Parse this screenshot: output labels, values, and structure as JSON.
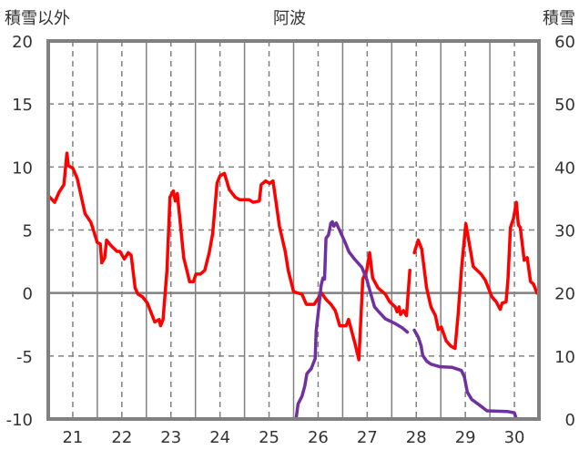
{
  "chart_data": {
    "type": "line",
    "title": "阿波",
    "ylabel_left": "積雪以外",
    "ylabel_right": "積雪",
    "xlim": [
      21,
      31
    ],
    "ylim_left": [
      -10,
      20
    ],
    "ylim_right": [
      0,
      60
    ],
    "yticks_left": [
      "20",
      "15",
      "10",
      "5",
      "0",
      "-5",
      "-10"
    ],
    "yticks_right": [
      "60",
      "50",
      "40",
      "30",
      "20",
      "10",
      "0"
    ],
    "xticks": [
      "21",
      "22",
      "23",
      "24",
      "25",
      "26",
      "27",
      "28",
      "29",
      "30"
    ],
    "grid": true,
    "colors": {
      "temp": "#ff0000",
      "snow": "#7030a0",
      "axis": "#808080"
    },
    "series": [
      {
        "name": "積雪以外",
        "axis": "left",
        "color": "#ff0000",
        "points": [
          [
            21.01,
            7.7
          ],
          [
            21.13,
            7.2
          ],
          [
            21.22,
            8.0
          ],
          [
            21.32,
            8.6
          ],
          [
            21.38,
            11.1
          ],
          [
            21.41,
            10.1
          ],
          [
            21.5,
            9.9
          ],
          [
            21.59,
            9.1
          ],
          [
            21.75,
            6.3
          ],
          [
            21.87,
            5.6
          ],
          [
            22.0,
            4.0
          ],
          [
            22.06,
            3.9
          ],
          [
            22.09,
            2.4
          ],
          [
            22.15,
            2.8
          ],
          [
            22.19,
            4.2
          ],
          [
            22.27,
            3.8
          ],
          [
            22.4,
            3.3
          ],
          [
            22.46,
            3.3
          ],
          [
            22.55,
            2.7
          ],
          [
            22.63,
            3.2
          ],
          [
            22.69,
            3.0
          ],
          [
            22.77,
            0.4
          ],
          [
            22.83,
            -0.1
          ],
          [
            22.92,
            -0.3
          ],
          [
            23.02,
            -0.8
          ],
          [
            23.17,
            -2.3
          ],
          [
            23.26,
            -2.1
          ],
          [
            23.29,
            -2.6
          ],
          [
            23.34,
            -2.1
          ],
          [
            23.42,
            1.8
          ],
          [
            23.48,
            7.6
          ],
          [
            23.55,
            8.1
          ],
          [
            23.59,
            7.3
          ],
          [
            23.63,
            7.9
          ],
          [
            23.76,
            2.8
          ],
          [
            23.85,
            1.4
          ],
          [
            23.88,
            0.9
          ],
          [
            23.96,
            0.9
          ],
          [
            24.01,
            1.5
          ],
          [
            24.1,
            1.5
          ],
          [
            24.19,
            1.8
          ],
          [
            24.28,
            3.2
          ],
          [
            24.35,
            4.7
          ],
          [
            24.44,
            8.7
          ],
          [
            24.5,
            9.3
          ],
          [
            24.59,
            9.5
          ],
          [
            24.69,
            8.2
          ],
          [
            24.81,
            7.6
          ],
          [
            24.9,
            7.4
          ],
          [
            25.09,
            7.4
          ],
          [
            25.18,
            7.2
          ],
          [
            25.3,
            7.3
          ],
          [
            25.34,
            8.6
          ],
          [
            25.43,
            8.9
          ],
          [
            25.51,
            8.7
          ],
          [
            25.58,
            8.9
          ],
          [
            25.71,
            5.3
          ],
          [
            25.83,
            3.3
          ],
          [
            25.89,
            1.8
          ],
          [
            26.0,
            0.1
          ],
          [
            26.17,
            -0.1
          ],
          [
            26.26,
            -0.9
          ],
          [
            26.42,
            -0.9
          ],
          [
            26.57,
            0.0
          ],
          [
            26.66,
            -0.5
          ],
          [
            26.76,
            -0.9
          ],
          [
            26.85,
            -1.4
          ],
          [
            26.94,
            -2.6
          ],
          [
            27.07,
            -2.6
          ],
          [
            27.12,
            -2.1
          ],
          [
            27.25,
            -4.0
          ],
          [
            27.33,
            -5.3
          ],
          [
            27.41,
            1.1
          ],
          [
            27.49,
            1.8
          ],
          [
            27.55,
            3.2
          ],
          [
            27.61,
            1.2
          ],
          [
            27.72,
            0.4
          ],
          [
            27.87,
            -0.1
          ],
          [
            27.96,
            -0.7
          ],
          [
            28.07,
            -1.1
          ],
          [
            28.11,
            -1.5
          ],
          [
            28.15,
            -1.1
          ],
          [
            28.18,
            -1.7
          ],
          [
            28.24,
            -1.4
          ],
          [
            28.3,
            -1.8
          ],
          [
            28.37,
            1.8
          ],
          null,
          [
            28.46,
            3.2
          ],
          [
            28.54,
            4.2
          ],
          [
            28.61,
            3.5
          ],
          [
            28.71,
            0.4
          ],
          [
            28.8,
            -1.1
          ],
          [
            28.89,
            -1.8
          ],
          [
            28.95,
            -2.9
          ],
          [
            29.01,
            -2.7
          ],
          [
            29.11,
            -3.8
          ],
          [
            29.2,
            -4.2
          ],
          [
            29.29,
            -4.4
          ],
          [
            29.35,
            -1.8
          ],
          [
            29.43,
            2.3
          ],
          [
            29.51,
            5.5
          ],
          [
            29.6,
            3.5
          ],
          [
            29.66,
            2.1
          ],
          [
            29.82,
            1.5
          ],
          [
            29.91,
            1.0
          ],
          [
            30.04,
            -0.3
          ],
          [
            30.13,
            -0.7
          ],
          [
            30.21,
            -1.3
          ],
          [
            30.25,
            -0.8
          ],
          [
            30.33,
            -0.7
          ],
          [
            30.37,
            1.1
          ],
          [
            30.42,
            5.2
          ],
          [
            30.48,
            5.9
          ],
          [
            30.54,
            7.2
          ],
          [
            30.58,
            5.4
          ],
          [
            30.62,
            5.2
          ],
          [
            30.7,
            2.6
          ],
          [
            30.76,
            2.8
          ],
          [
            30.83,
            0.9
          ],
          [
            30.89,
            0.7
          ],
          [
            30.96,
            0.0
          ]
        ]
      },
      {
        "name": "積雪",
        "axis": "right",
        "color": "#7030a0",
        "points": [
          [
            21.0,
            0
          ],
          [
            26.05,
            0
          ],
          [
            26.09,
            2.4
          ],
          [
            26.17,
            3.6
          ],
          [
            26.23,
            5.3
          ],
          [
            26.27,
            7.2
          ],
          [
            26.36,
            8.0
          ],
          [
            26.44,
            9.6
          ],
          [
            26.46,
            14.0
          ],
          [
            26.51,
            17.4
          ],
          [
            26.56,
            21.2
          ],
          [
            26.6,
            22.4
          ],
          [
            26.63,
            22.2
          ],
          [
            26.66,
            28.7
          ],
          [
            26.71,
            29.2
          ],
          [
            26.76,
            31.1
          ],
          [
            26.79,
            31.3
          ],
          [
            26.82,
            30.6
          ],
          [
            26.87,
            31.1
          ],
          [
            26.94,
            29.9
          ],
          [
            27.04,
            28.2
          ],
          [
            27.13,
            26.5
          ],
          [
            27.25,
            25.3
          ],
          [
            27.39,
            24.1
          ],
          [
            27.49,
            22.2
          ],
          [
            27.56,
            20.2
          ],
          [
            27.65,
            17.8
          ],
          [
            27.75,
            16.9
          ],
          [
            27.87,
            15.9
          ],
          [
            28.06,
            15.2
          ],
          [
            28.21,
            14.5
          ],
          [
            28.32,
            13.8
          ],
          null,
          [
            28.46,
            14.1
          ],
          [
            28.54,
            13.0
          ],
          [
            28.6,
            11.6
          ],
          [
            28.63,
            10.1
          ],
          [
            28.71,
            9.2
          ],
          [
            28.8,
            8.7
          ],
          [
            28.98,
            8.3
          ],
          [
            29.23,
            8.2
          ],
          [
            29.42,
            7.7
          ],
          [
            29.48,
            6.7
          ],
          [
            29.54,
            4.3
          ],
          [
            29.63,
            3.1
          ],
          [
            29.79,
            2.2
          ],
          [
            29.94,
            1.3
          ],
          [
            30.35,
            1.2
          ],
          [
            30.5,
            1.0
          ],
          [
            30.54,
            0
          ],
          [
            30.96,
            0
          ]
        ]
      }
    ]
  }
}
